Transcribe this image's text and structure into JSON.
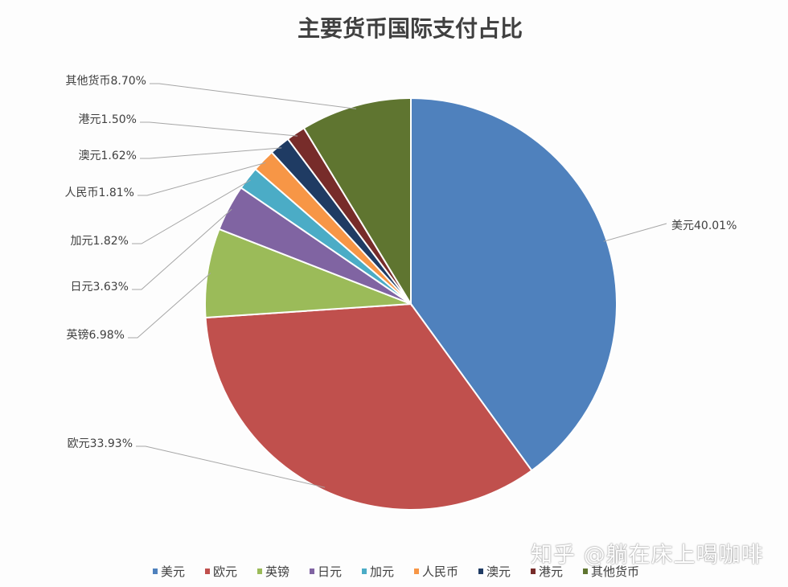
{
  "chart_data": {
    "type": "pie",
    "title": "主要货币国际支付占比",
    "start": "top",
    "direction": "clockwise",
    "legend_position": "bottom",
    "slices": [
      {
        "name": "美元",
        "value": 40.01,
        "label": "美元40.01%",
        "color": "#4f81bd"
      },
      {
        "name": "欧元",
        "value": 33.93,
        "label": "欧元33.93%",
        "color": "#c0504d"
      },
      {
        "name": "英镑",
        "value": 6.98,
        "label": "英镑6.98%",
        "color": "#9bbb59"
      },
      {
        "name": "日元",
        "value": 3.63,
        "label": "日元3.63%",
        "color": "#8064a2"
      },
      {
        "name": "加元",
        "value": 1.82,
        "label": "加元1.82%",
        "color": "#4bacc6"
      },
      {
        "name": "人民币",
        "value": 1.81,
        "label": "人民币1.81%",
        "color": "#f79646"
      },
      {
        "name": "澳元",
        "value": 1.62,
        "label": "澳元1.62%",
        "color": "#1f3b63"
      },
      {
        "name": "港元",
        "value": 1.5,
        "label": "港元1.50%",
        "color": "#772c2a"
      },
      {
        "name": "其他货币",
        "value": 8.7,
        "label": "其他货币8.70%",
        "color": "#5f7530"
      }
    ]
  },
  "watermark": "知乎 @躺在床上喝咖啡"
}
